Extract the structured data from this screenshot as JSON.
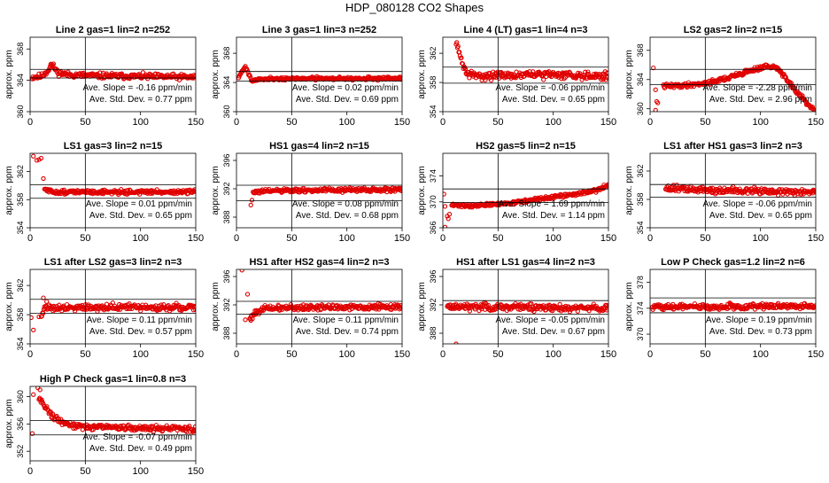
{
  "figure": {
    "title": "HDP_080128  CO2 Shapes",
    "point_color": "#e00000",
    "axis_color": "#000000"
  },
  "chart_data": [
    {
      "type": "scatter",
      "title": "Line 2 gas=1 lin=2 n=252",
      "ylabel": "approx. ppm",
      "xlim": [
        0,
        150
      ],
      "ylim": [
        360,
        369.5
      ],
      "yticks": [
        360,
        364,
        368
      ],
      "xticks": [
        0,
        50,
        100,
        150
      ],
      "vline": 50,
      "hlines": [
        364.3,
        365.4
      ],
      "slope_label": "Ave. Slope =",
      "slope_value": "-0.16",
      "slope_unit": "ppm/min",
      "std_label": "Ave. Std. Dev. =",
      "std_value": "0.77",
      "std_unit": "ppm",
      "curve": [
        [
          2,
          364.4
        ],
        [
          10,
          364.5
        ],
        [
          16,
          365.2
        ],
        [
          19,
          366.0
        ],
        [
          21,
          365.8
        ],
        [
          25,
          365.0
        ],
        [
          35,
          364.7
        ],
        [
          60,
          364.6
        ],
        [
          100,
          364.5
        ],
        [
          150,
          364.4
        ]
      ],
      "noise": 0.22,
      "seed": 11
    },
    {
      "type": "scatter",
      "title": "Line 3 gas=1 lin=3 n=252",
      "ylabel": "approx. ppm",
      "xlim": [
        0,
        150
      ],
      "ylim": [
        360,
        370.2
      ],
      "yticks": [
        360,
        364,
        368
      ],
      "xticks": [
        0,
        50,
        100,
        150
      ],
      "vline": 50,
      "hlines": [
        364.2,
        365.5
      ],
      "slope_label": "Ave. Slope =",
      "slope_value": "0.02",
      "slope_unit": "ppm/min",
      "std_label": "Ave. Std. Dev. =",
      "std_value": "0.69",
      "std_unit": "ppm",
      "curve": [
        [
          2,
          364.8
        ],
        [
          5,
          365.5
        ],
        [
          8,
          366.2
        ],
        [
          11,
          365.2
        ],
        [
          14,
          364.2
        ],
        [
          18,
          364.4
        ],
        [
          25,
          364.5
        ],
        [
          80,
          364.55
        ],
        [
          150,
          364.55
        ]
      ],
      "noise": 0.12,
      "seed": 21
    },
    {
      "type": "scatter",
      "title": "Line 4 (LT) gas=1 lin=4 n=3",
      "ylabel": "approx. ppm",
      "xlim": [
        0,
        150
      ],
      "ylim": [
        354,
        364.2
      ],
      "yticks": [
        354,
        358,
        362
      ],
      "xticks": [
        0,
        50,
        100,
        150
      ],
      "vline": 50,
      "hlines": [
        357.9,
        360.1
      ],
      "slope_label": "Ave. Slope =",
      "slope_value": "-0.06",
      "slope_unit": "ppm/min",
      "std_label": "Ave. Std. Dev. =",
      "std_value": "0.65",
      "std_unit": "ppm",
      "curve": [
        [
          12,
          363.8
        ],
        [
          15,
          361.8
        ],
        [
          18,
          360.5
        ],
        [
          22,
          359.2
        ],
        [
          30,
          358.9
        ],
        [
          60,
          359.0
        ],
        [
          100,
          359.1
        ],
        [
          150,
          358.9
        ]
      ],
      "noise": 0.32,
      "seed": 31
    },
    {
      "type": "scatter",
      "title": "LS2 gas=2 lin=2 n=15",
      "ylabel": "approx. ppm",
      "xlim": [
        0,
        150
      ],
      "ylim": [
        359.6,
        369.8
      ],
      "yticks": [
        360,
        364,
        368
      ],
      "xticks": [
        0,
        50,
        100,
        150
      ],
      "vline": 50,
      "hlines": [
        363.3,
        365.4
      ],
      "slope_label": "Ave. Slope =",
      "slope_value": "-2.28",
      "slope_unit": "ppm/min",
      "std_label": "Ave. Std. Dev. =",
      "std_value": "2.96",
      "std_unit": "ppm",
      "curve": [
        [
          12,
          363.1
        ],
        [
          30,
          363.2
        ],
        [
          50,
          363.5
        ],
        [
          70,
          364.2
        ],
        [
          90,
          365.2
        ],
        [
          105,
          365.8
        ],
        [
          115,
          365.6
        ],
        [
          123,
          364.2
        ],
        [
          132,
          362.4
        ],
        [
          142,
          360.8
        ],
        [
          150,
          359.4
        ]
      ],
      "noise": 0.18,
      "seed": 41,
      "extra": [
        [
          3,
          365.6
        ],
        [
          5,
          362.6
        ],
        [
          6,
          361.0
        ],
        [
          7,
          360.8
        ],
        [
          5,
          359.8
        ]
      ]
    },
    {
      "type": "scatter",
      "title": "LS1 gas=3 lin=2 n=15",
      "ylabel": "approx. ppm",
      "xlim": [
        0,
        150
      ],
      "ylim": [
        354,
        364.6
      ],
      "yticks": [
        354,
        358,
        362
      ],
      "xticks": [
        0,
        50,
        100,
        150
      ],
      "vline": 50,
      "hlines": [
        358.2,
        360.1
      ],
      "slope_label": "Ave. Slope =",
      "slope_value": "0.01",
      "slope_unit": "ppm/min",
      "std_label": "Ave. Std. Dev. =",
      "std_value": "0.65",
      "std_unit": "ppm",
      "curve": [
        [
          14,
          359.4
        ],
        [
          20,
          359.1
        ],
        [
          50,
          359.1
        ],
        [
          100,
          359.1
        ],
        [
          150,
          359.1
        ]
      ],
      "noise": 0.18,
      "seed": 51,
      "extra": [
        [
          3,
          364.2
        ],
        [
          6,
          363.6
        ],
        [
          8,
          363.7
        ],
        [
          10,
          363.9
        ],
        [
          12,
          361.0
        ],
        [
          13,
          359.5
        ]
      ]
    },
    {
      "type": "scatter",
      "title": "HS1 gas=4 lin=2 n=15",
      "ylabel": "approx. ppm",
      "xlim": [
        0,
        150
      ],
      "ylim": [
        386.5,
        397
      ],
      "yticks": [
        388,
        392,
        396
      ],
      "xticks": [
        0,
        50,
        100,
        150
      ],
      "vline": 50,
      "hlines": [
        390.3,
        392.5
      ],
      "slope_label": "Ave. Slope =",
      "slope_value": "0.08",
      "slope_unit": "ppm/min",
      "std_label": "Ave. Std. Dev. =",
      "std_value": "0.68",
      "std_unit": "ppm",
      "curve": [
        [
          15,
          391.5
        ],
        [
          30,
          391.7
        ],
        [
          80,
          391.8
        ],
        [
          150,
          391.9
        ]
      ],
      "noise": 0.18,
      "seed": 61,
      "extra": [
        [
          13,
          389.7
        ],
        [
          14,
          390.4
        ]
      ]
    },
    {
      "type": "scatter",
      "title": "HS2 gas=5 lin=2 n=15",
      "ylabel": "approx. ppm",
      "xlim": [
        0,
        150
      ],
      "ylim": [
        366,
        377.5
      ],
      "yticks": [
        366,
        370,
        374
      ],
      "xticks": [
        0,
        50,
        100,
        150
      ],
      "vline": 50,
      "hlines": [
        369.9,
        372.0
      ],
      "slope_label": "Ave. Slope =",
      "slope_value": "1.69",
      "slope_unit": "ppm/min",
      "std_label": "Ave. Std. Dev. =",
      "std_value": "1.14",
      "std_unit": "ppm",
      "curve": [
        [
          8,
          369.5
        ],
        [
          30,
          369.4
        ],
        [
          60,
          369.8
        ],
        [
          90,
          370.5
        ],
        [
          120,
          371.2
        ],
        [
          140,
          371.8
        ],
        [
          150,
          372.6
        ]
      ],
      "noise": 0.15,
      "seed": 71,
      "extra": [
        [
          1,
          371.2
        ],
        [
          2,
          369.3
        ],
        [
          4,
          367.8
        ],
        [
          6,
          368.1
        ],
        [
          5,
          367.4
        ],
        [
          2,
          366.1
        ]
      ]
    },
    {
      "type": "scatter",
      "title": "LS1 after HS1 gas=3 lin=2 n=3",
      "ylabel": "approx. ppm",
      "xlim": [
        0,
        150
      ],
      "ylim": [
        354,
        364.5
      ],
      "yticks": [
        354,
        358,
        362
      ],
      "xticks": [
        0,
        50,
        100,
        150
      ],
      "vline": 50,
      "hlines": [
        358.3,
        360.1
      ],
      "slope_label": "Ave. Slope =",
      "slope_value": "-0.06",
      "slope_unit": "ppm/min",
      "std_label": "Ave. Std. Dev. =",
      "std_value": "0.65",
      "std_unit": "ppm",
      "curve": [
        [
          14,
          359.6
        ],
        [
          50,
          359.3
        ],
        [
          100,
          359.2
        ],
        [
          150,
          359.0
        ]
      ],
      "noise": 0.3,
      "seed": 81
    },
    {
      "type": "scatter",
      "title": "LS1 after LS2 gas=3 lin=2 n=3",
      "ylabel": "approx. ppm",
      "xlim": [
        0,
        150
      ],
      "ylim": [
        354,
        364.2
      ],
      "yticks": [
        354,
        358,
        362
      ],
      "xticks": [
        0,
        50,
        100,
        150
      ],
      "vline": 50,
      "hlines": [
        358.2,
        360.1
      ],
      "slope_label": "Ave. Slope =",
      "slope_value": "0.11",
      "slope_unit": "ppm/min",
      "std_label": "Ave. Std. Dev. =",
      "std_value": "0.57",
      "std_unit": "ppm",
      "curve": [
        [
          10,
          358.0
        ],
        [
          14,
          359.0
        ],
        [
          25,
          359.0
        ],
        [
          60,
          359.0
        ],
        [
          150,
          359.0
        ]
      ],
      "noise": 0.28,
      "seed": 91,
      "extra": [
        [
          1,
          357.6
        ],
        [
          3,
          355.9
        ],
        [
          8,
          357.7
        ],
        [
          12,
          360.3
        ],
        [
          15,
          359.8
        ]
      ]
    },
    {
      "type": "scatter",
      "title": "HS1 after HS2 gas=4 lin=2 n=3",
      "ylabel": "approx. ppm",
      "xlim": [
        0,
        150
      ],
      "ylim": [
        386.5,
        397
      ],
      "yticks": [
        388,
        392,
        396
      ],
      "xticks": [
        0,
        50,
        100,
        150
      ],
      "vline": 50,
      "hlines": [
        390.7,
        392.5
      ],
      "slope_label": "Ave. Slope =",
      "slope_value": "0.11",
      "slope_unit": "ppm/min",
      "std_label": "Ave. Std. Dev. =",
      "std_value": "0.74",
      "std_unit": "ppm",
      "curve": [
        [
          12,
          390.0
        ],
        [
          16,
          390.8
        ],
        [
          22,
          391.4
        ],
        [
          40,
          391.6
        ],
        [
          100,
          391.7
        ],
        [
          150,
          391.7
        ]
      ],
      "noise": 0.25,
      "seed": 101,
      "extra": [
        [
          5,
          396.9
        ],
        [
          8,
          389.9
        ],
        [
          10,
          393.5
        ],
        [
          13,
          389.8
        ]
      ]
    },
    {
      "type": "scatter",
      "title": "HS1 after LS1 gas=4 lin=2 n=3",
      "ylabel": "approx. ppm",
      "xlim": [
        0,
        150
      ],
      "ylim": [
        386.5,
        397
      ],
      "yticks": [
        388,
        392,
        396
      ],
      "xticks": [
        0,
        50,
        100,
        150
      ],
      "vline": 50,
      "hlines": [
        390.7,
        392.6
      ],
      "slope_label": "Ave. Slope =",
      "slope_value": "-0.05",
      "slope_unit": "ppm/min",
      "std_label": "Ave. Std. Dev. =",
      "std_value": "0.67",
      "std_unit": "ppm",
      "curve": [
        [
          4,
          391.8
        ],
        [
          50,
          391.7
        ],
        [
          100,
          391.6
        ],
        [
          150,
          391.6
        ]
      ],
      "noise": 0.3,
      "seed": 111,
      "extra": [
        [
          12,
          386.5
        ]
      ]
    },
    {
      "type": "scatter",
      "title": "Low P Check gas=1.2 lin=2 n=6",
      "ylabel": "approx. ppm",
      "xlim": [
        0,
        150
      ],
      "ylim": [
        368.5,
        380
      ],
      "yticks": [
        370,
        374,
        378
      ],
      "xticks": [
        0,
        50,
        100,
        150
      ],
      "vline": 50,
      "hlines": [
        373.3,
        375.6
      ],
      "slope_label": "Ave. Slope =",
      "slope_value": "0.19",
      "slope_unit": "ppm/min",
      "std_label": "Ave. Std. Dev. =",
      "std_value": "0.73",
      "std_unit": "ppm",
      "curve": [
        [
          2,
          374.3
        ],
        [
          50,
          374.2
        ],
        [
          100,
          374.3
        ],
        [
          150,
          374.4
        ]
      ],
      "noise": 0.25,
      "seed": 121
    },
    {
      "type": "scatter",
      "title": "High P Check gas=1 lin=0.8 n=3",
      "ylabel": "approx. ppm",
      "xlim": [
        0,
        150
      ],
      "ylim": [
        350.6,
        361.5
      ],
      "yticks": [
        352,
        356,
        360
      ],
      "xticks": [
        0,
        50,
        100,
        150
      ],
      "vline": 50,
      "hlines": [
        354.4,
        356.5
      ],
      "slope_label": "Ave. Slope =",
      "slope_value": "-0.07",
      "slope_unit": "ppm/min",
      "std_label": "Ave. Std. Dev. =",
      "std_value": "0.49",
      "std_unit": "ppm",
      "curve": [
        [
          8,
          359.8
        ],
        [
          12,
          359.0
        ],
        [
          16,
          358.0
        ],
        [
          20,
          357.2
        ],
        [
          26,
          356.5
        ],
        [
          35,
          355.9
        ],
        [
          50,
          355.6
        ],
        [
          100,
          355.4
        ],
        [
          150,
          355.3
        ]
      ],
      "noise": 0.25,
      "seed": 131,
      "extra": [
        [
          2,
          354.6
        ],
        [
          3,
          360.3
        ],
        [
          7,
          361.3
        ],
        [
          9,
          361.0
        ]
      ]
    }
  ]
}
